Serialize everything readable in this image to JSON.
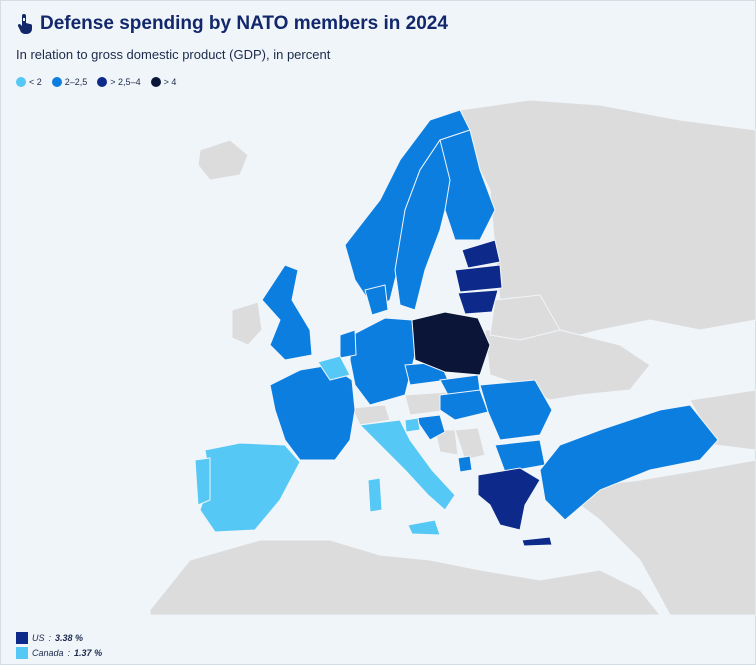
{
  "header": {
    "icon": "pointer-hand-icon",
    "title": "Defense spending by NATO members in 2024",
    "subtitle": "In relation to gross domestic product (GDP), in percent"
  },
  "legend": [
    {
      "label": "< 2",
      "color": "#55c8f5"
    },
    {
      "label": "2–2,5",
      "color": "#0b7ee0"
    },
    {
      "label": "> 2,5–4",
      "color": "#0d2a8a"
    },
    {
      "label": "> 4",
      "color": "#0b1537"
    }
  ],
  "colors": {
    "background": "#f0f5fa",
    "non_member": "#dcdcdc",
    "lt2": "#55c8f5",
    "2to25": "#0b7ee0",
    "25to4": "#0d2a8a",
    "gt4": "#0b1537"
  },
  "footnotes": [
    {
      "name": "US",
      "value": "3.38 %",
      "color": "#0d2a8a"
    },
    {
      "name": "Canada",
      "value": "1.37 %",
      "color": "#55c8f5"
    }
  ]
}
